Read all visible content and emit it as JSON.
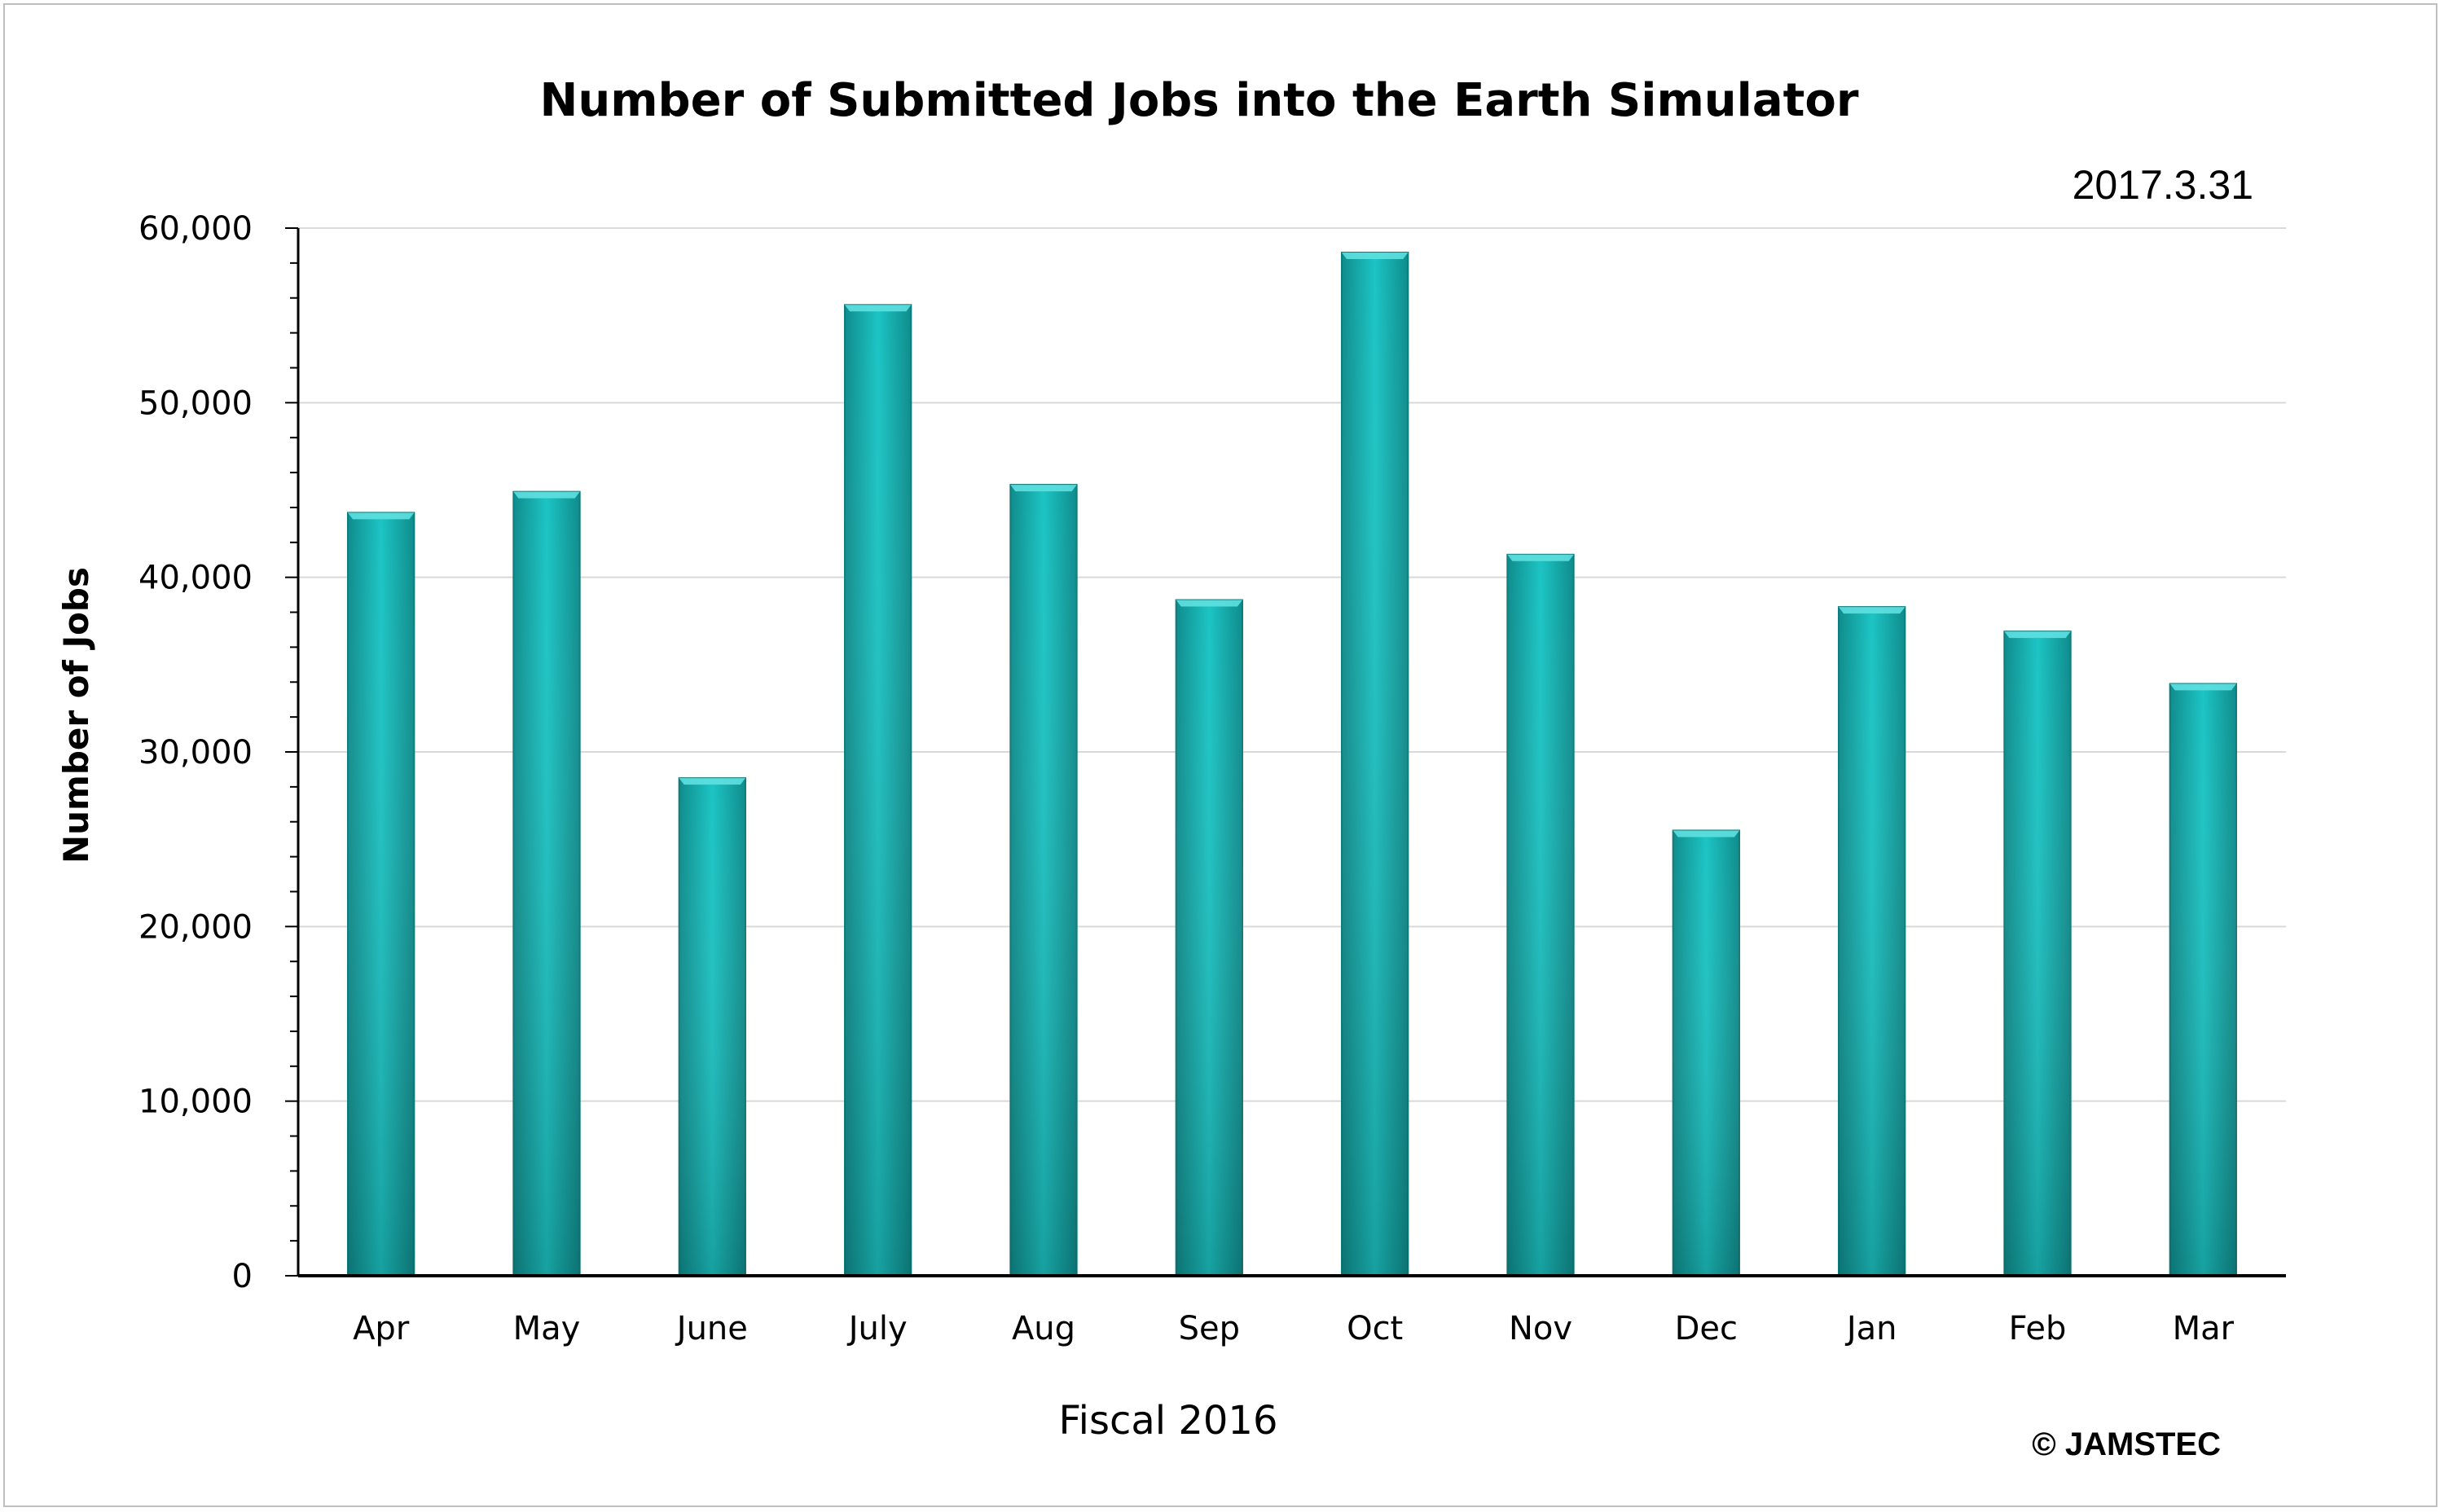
{
  "chart_data": {
    "type": "bar",
    "title": "Number of Submitted Jobs into the Earth Simulator",
    "date_stamp": "2017.3.31",
    "xlabel": "Fiscal 2016",
    "ylabel": "Number of Jobs",
    "copyright": "© JAMSTEC",
    "categories": [
      "Apr",
      "May",
      "June",
      "July",
      "Aug",
      "Sep",
      "Oct",
      "Nov",
      "Dec",
      "Jan",
      "Feb",
      "Mar"
    ],
    "values": [
      43700,
      44900,
      28500,
      55600,
      45300,
      38700,
      58600,
      41300,
      25500,
      38300,
      36900,
      33900
    ],
    "ylim": [
      0,
      60000
    ],
    "yticks": [
      0,
      10000,
      20000,
      30000,
      40000,
      50000,
      60000
    ],
    "ytick_labels": [
      "0",
      "10,000",
      "20,000",
      "30,000",
      "40,000",
      "50,000",
      "60,000"
    ],
    "grid": true,
    "legend": "none",
    "colors": {
      "bar_top": "#18C0C0",
      "bar_bottom": "#128A8A",
      "bar_edge": "#0E7C7C",
      "grid": "#d9d9d9",
      "axis": "#000000"
    }
  }
}
